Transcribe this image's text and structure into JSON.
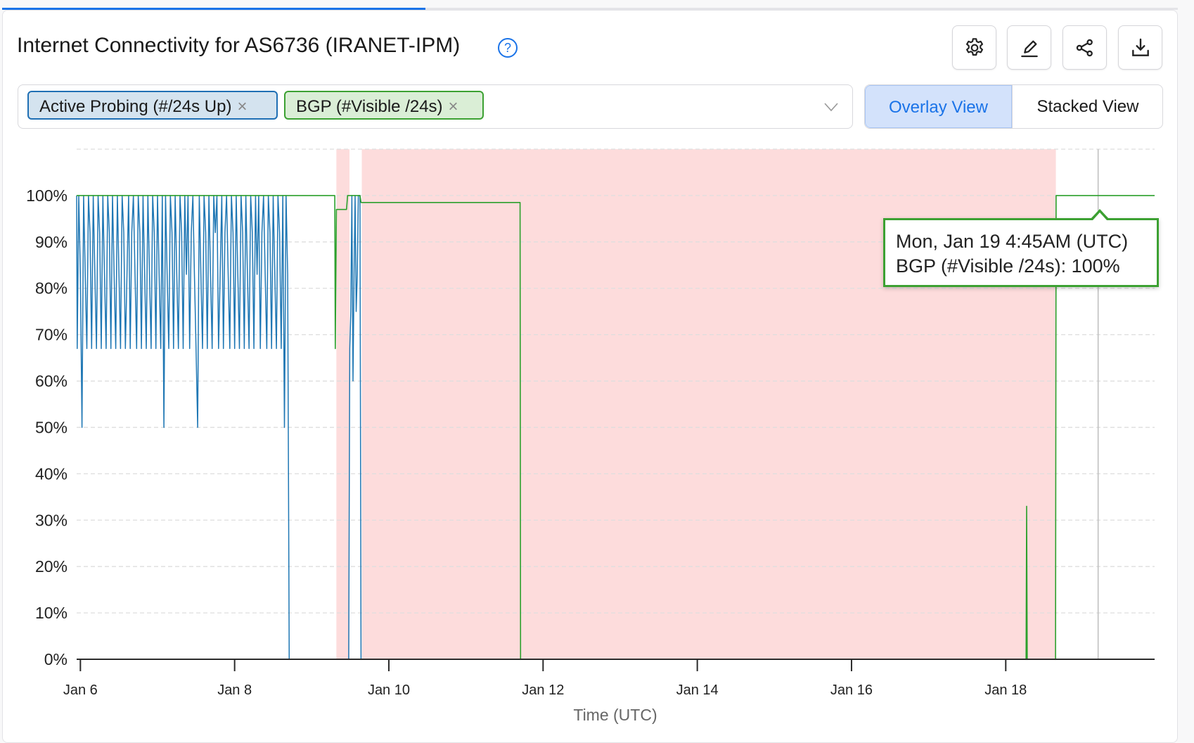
{
  "header": {
    "title": "Internet Connectivity for AS6736 (IRANET-IPM)",
    "help_icon": "?",
    "loading_progress_percent": 36,
    "buttons": [
      {
        "name": "settings",
        "icon": "gear-icon"
      },
      {
        "name": "annotate",
        "icon": "pencil-icon"
      },
      {
        "name": "share",
        "icon": "share-icon"
      },
      {
        "name": "download",
        "icon": "download-icon"
      }
    ]
  },
  "filters": {
    "chips": [
      {
        "label": "Active Probing (#/24s Up)",
        "remove": "×"
      },
      {
        "label": "BGP (#Visible /24s)",
        "remove": "×"
      }
    ]
  },
  "view_toggle": {
    "overlay": "Overlay View",
    "stacked": "Stacked View",
    "selected": "overlay"
  },
  "tooltip": {
    "time": "Mon, Jan 19 4:45AM (UTC)",
    "value": "BGP (#Visible /24s): 100%"
  },
  "colors": {
    "active_probing": "#1f77b4",
    "bgp": "#2ca02c",
    "outage": "#fddcdc",
    "accent": "#1a73e8"
  },
  "chart_data": {
    "type": "line",
    "xlabel": "Time (UTC)",
    "ylabel": "",
    "x_ticks": [
      "Jan 6",
      "Jan 8",
      "Jan 10",
      "Jan 12",
      "Jan 14",
      "Jan 16",
      "Jan 18"
    ],
    "y_ticks": [
      "0%",
      "10%",
      "20%",
      "30%",
      "40%",
      "50%",
      "60%",
      "70%",
      "80%",
      "90%",
      "100%"
    ],
    "xlim": [
      "Jan 5 22:50",
      "Jan 19 22:20"
    ],
    "ylim": [
      0,
      110
    ],
    "grid": "horizontal dashed",
    "hover_time": "Jan 19 04:45",
    "outage_regions": [
      [
        "Jan 9 07:40",
        "Jan 9 11:45"
      ],
      [
        "Jan 9 15:35",
        "Jan 18 15:36"
      ]
    ],
    "series": [
      {
        "name": "Active Probing (#/24s Up)",
        "points": [
          [
            "Jan 5 22:50",
            100
          ],
          [
            "Jan 5 23:00",
            67
          ],
          [
            "Jan 5 23:30",
            100
          ],
          [
            "Jan 6 00:00",
            83
          ],
          [
            "Jan 6 00:30",
            50
          ],
          [
            "Jan 6 01:00",
            100
          ],
          [
            "Jan 6 01:30",
            83
          ],
          [
            "Jan 6 02:00",
            67
          ],
          [
            "Jan 6 02:30",
            100
          ],
          [
            "Jan 6 03:00",
            92
          ],
          [
            "Jan 6 03:30",
            67
          ],
          [
            "Jan 6 04:00",
            100
          ],
          [
            "Jan 6 04:30",
            83
          ],
          [
            "Jan 6 05:00",
            67
          ],
          [
            "Jan 6 05:30",
            100
          ],
          [
            "Jan 6 06:00",
            92
          ],
          [
            "Jan 6 06:30",
            67
          ],
          [
            "Jan 6 07:00",
            100
          ],
          [
            "Jan 6 07:30",
            83
          ],
          [
            "Jan 6 08:00",
            67
          ],
          [
            "Jan 6 08:30",
            100
          ],
          [
            "Jan 6 09:00",
            92
          ],
          [
            "Jan 6 09:30",
            67
          ],
          [
            "Jan 6 10:00",
            100
          ],
          [
            "Jan 6 10:30",
            83
          ],
          [
            "Jan 6 11:00",
            67
          ],
          [
            "Jan 6 11:30",
            100
          ],
          [
            "Jan 6 12:00",
            83
          ],
          [
            "Jan 6 12:30",
            67
          ],
          [
            "Jan 6 13:00",
            100
          ],
          [
            "Jan 6 13:30",
            92
          ],
          [
            "Jan 6 14:00",
            67
          ],
          [
            "Jan 6 14:30",
            83
          ],
          [
            "Jan 6 15:00",
            100
          ],
          [
            "Jan 6 15:30",
            67
          ],
          [
            "Jan 6 16:00",
            92
          ],
          [
            "Jan 6 16:30",
            100
          ],
          [
            "Jan 6 17:00",
            83
          ],
          [
            "Jan 6 17:30",
            67
          ],
          [
            "Jan 6 18:00",
            100
          ],
          [
            "Jan 6 18:30",
            92
          ],
          [
            "Jan 6 19:00",
            67
          ],
          [
            "Jan 6 19:30",
            100
          ],
          [
            "Jan 6 20:00",
            83
          ],
          [
            "Jan 6 20:30",
            67
          ],
          [
            "Jan 6 21:00",
            100
          ],
          [
            "Jan 6 21:30",
            83
          ],
          [
            "Jan 6 22:00",
            67
          ],
          [
            "Jan 6 22:30",
            100
          ],
          [
            "Jan 6 23:00",
            92
          ],
          [
            "Jan 6 23:30",
            67
          ],
          [
            "Jan 7 00:00",
            100
          ],
          [
            "Jan 7 00:30",
            83
          ],
          [
            "Jan 7 01:00",
            67
          ],
          [
            "Jan 7 01:30",
            100
          ],
          [
            "Jan 7 02:00",
            50
          ],
          [
            "Jan 7 02:30",
            100
          ],
          [
            "Jan 7 03:00",
            83
          ],
          [
            "Jan 7 03:30",
            67
          ],
          [
            "Jan 7 04:00",
            100
          ],
          [
            "Jan 7 04:30",
            92
          ],
          [
            "Jan 7 05:00",
            67
          ],
          [
            "Jan 7 05:30",
            100
          ],
          [
            "Jan 7 06:00",
            83
          ],
          [
            "Jan 7 06:30",
            67
          ],
          [
            "Jan 7 07:00",
            100
          ],
          [
            "Jan 7 07:30",
            92
          ],
          [
            "Jan 7 08:00",
            67
          ],
          [
            "Jan 7 08:30",
            100
          ],
          [
            "Jan 7 09:00",
            83
          ],
          [
            "Jan 7 09:30",
            100
          ],
          [
            "Jan 7 10:00",
            67
          ],
          [
            "Jan 7 10:30",
            92
          ],
          [
            "Jan 7 11:00",
            100
          ],
          [
            "Jan 7 11:30",
            83
          ],
          [
            "Jan 7 12:00",
            67
          ],
          [
            "Jan 7 12:30",
            50
          ],
          [
            "Jan 7 13:00",
            100
          ],
          [
            "Jan 7 13:30",
            83
          ],
          [
            "Jan 7 14:00",
            67
          ],
          [
            "Jan 7 14:30",
            100
          ],
          [
            "Jan 7 15:00",
            92
          ],
          [
            "Jan 7 15:30",
            67
          ],
          [
            "Jan 7 16:00",
            100
          ],
          [
            "Jan 7 16:30",
            83
          ],
          [
            "Jan 7 17:00",
            67
          ],
          [
            "Jan 7 17:30",
            100
          ],
          [
            "Jan 7 18:00",
            92
          ],
          [
            "Jan 7 18:30",
            100
          ],
          [
            "Jan 7 19:00",
            67
          ],
          [
            "Jan 7 19:30",
            83
          ],
          [
            "Jan 7 20:00",
            100
          ],
          [
            "Jan 7 20:30",
            67
          ],
          [
            "Jan 7 21:00",
            92
          ],
          [
            "Jan 7 21:30",
            100
          ],
          [
            "Jan 7 22:00",
            83
          ],
          [
            "Jan 7 22:30",
            67
          ],
          [
            "Jan 7 23:00",
            100
          ],
          [
            "Jan 7 23:30",
            92
          ],
          [
            "Jan 8 00:00",
            67
          ],
          [
            "Jan 8 00:30",
            100
          ],
          [
            "Jan 8 01:00",
            83
          ],
          [
            "Jan 8 01:30",
            67
          ],
          [
            "Jan 8 02:00",
            100
          ],
          [
            "Jan 8 02:30",
            92
          ],
          [
            "Jan 8 03:00",
            67
          ],
          [
            "Jan 8 03:30",
            100
          ],
          [
            "Jan 8 04:00",
            83
          ],
          [
            "Jan 8 04:30",
            67
          ],
          [
            "Jan 8 05:00",
            100
          ],
          [
            "Jan 8 05:30",
            92
          ],
          [
            "Jan 8 06:00",
            67
          ],
          [
            "Jan 8 06:30",
            100
          ],
          [
            "Jan 8 07:00",
            83
          ],
          [
            "Jan 8 07:30",
            100
          ],
          [
            "Jan 8 08:00",
            67
          ],
          [
            "Jan 8 08:30",
            92
          ],
          [
            "Jan 8 09:00",
            100
          ],
          [
            "Jan 8 09:30",
            83
          ],
          [
            "Jan 8 10:00",
            67
          ],
          [
            "Jan 8 10:30",
            100
          ],
          [
            "Jan 8 11:00",
            92
          ],
          [
            "Jan 8 11:30",
            67
          ],
          [
            "Jan 8 12:00",
            100
          ],
          [
            "Jan 8 12:30",
            83
          ],
          [
            "Jan 8 13:00",
            67
          ],
          [
            "Jan 8 13:30",
            100
          ],
          [
            "Jan 8 14:00",
            92
          ],
          [
            "Jan 8 14:30",
            67
          ],
          [
            "Jan 8 15:00",
            100
          ],
          [
            "Jan 8 15:30",
            50
          ],
          [
            "Jan 8 16:00",
            100
          ],
          [
            "Jan 8 16:30",
            83
          ],
          [
            "Jan 8 17:00",
            0
          ],
          [
            "Jan 9 11:30",
            0
          ],
          [
            "Jan 9 11:50",
            67
          ],
          [
            "Jan 9 12:10",
            75
          ],
          [
            "Jan 9 12:30",
            100
          ],
          [
            "Jan 9 12:50",
            60
          ],
          [
            "Jan 9 13:10",
            83
          ],
          [
            "Jan 9 13:30",
            100
          ],
          [
            "Jan 9 13:50",
            75
          ],
          [
            "Jan 9 14:10",
            83
          ],
          [
            "Jan 9 14:30",
            100
          ],
          [
            "Jan 9 15:00",
            100
          ],
          [
            "Jan 9 15:20",
            0
          ],
          [
            "Jan 19 22:20",
            0
          ]
        ]
      },
      {
        "name": "BGP (#Visible /24s)",
        "points": [
          [
            "Jan 5 22:50",
            100
          ],
          [
            "Jan 9 07:10",
            100
          ],
          [
            "Jan 9 07:20",
            67
          ],
          [
            "Jan 9 07:40",
            97
          ],
          [
            "Jan 9 10:50",
            97
          ],
          [
            "Jan 9 11:10",
            100
          ],
          [
            "Jan 9 15:00",
            100
          ],
          [
            "Jan 9 15:20",
            98.5
          ],
          [
            "Jan 11 16:50",
            98.5
          ],
          [
            "Jan 11 17:00",
            0
          ],
          [
            "Jan 18 06:20",
            0
          ],
          [
            "Jan 18 06:30",
            33
          ],
          [
            "Jan 18 06:40",
            0
          ],
          [
            "Jan 18 15:30",
            0
          ],
          [
            "Jan 18 15:40",
            100
          ],
          [
            "Jan 19 22:20",
            100
          ]
        ]
      }
    ]
  }
}
